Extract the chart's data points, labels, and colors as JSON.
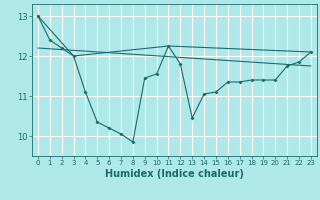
{
  "title": "",
  "xlabel": "Humidex (Indice chaleur)",
  "background_color": "#aee8e8",
  "grid_color": "#ffffff",
  "line_color": "#1a6b6b",
  "xlim": [
    -0.5,
    23.5
  ],
  "ylim": [
    9.5,
    13.3
  ],
  "yticks": [
    10,
    11,
    12,
    13
  ],
  "xticks": [
    0,
    1,
    2,
    3,
    4,
    5,
    6,
    7,
    8,
    9,
    10,
    11,
    12,
    13,
    14,
    15,
    16,
    17,
    18,
    19,
    20,
    21,
    22,
    23
  ],
  "series1_x": [
    0,
    1,
    2,
    3,
    4,
    5,
    6,
    7,
    8,
    9,
    10,
    11,
    12,
    13,
    14,
    15,
    16,
    17,
    18,
    19,
    20,
    21,
    22,
    23
  ],
  "series1_y": [
    13.0,
    12.4,
    12.2,
    12.0,
    11.1,
    10.35,
    10.2,
    10.05,
    9.85,
    11.45,
    11.55,
    12.25,
    11.8,
    10.45,
    11.05,
    11.1,
    11.35,
    11.35,
    11.4,
    11.4,
    11.4,
    11.75,
    11.85,
    12.1
  ],
  "series2_x": [
    0,
    3,
    11,
    23
  ],
  "series2_y": [
    13.0,
    12.0,
    12.25,
    12.1
  ],
  "series3_x": [
    0,
    23
  ],
  "series3_y": [
    12.2,
    11.75
  ],
  "xlabel_fontsize": 7,
  "tick_fontsize": 5,
  "marker_size": 2.0
}
